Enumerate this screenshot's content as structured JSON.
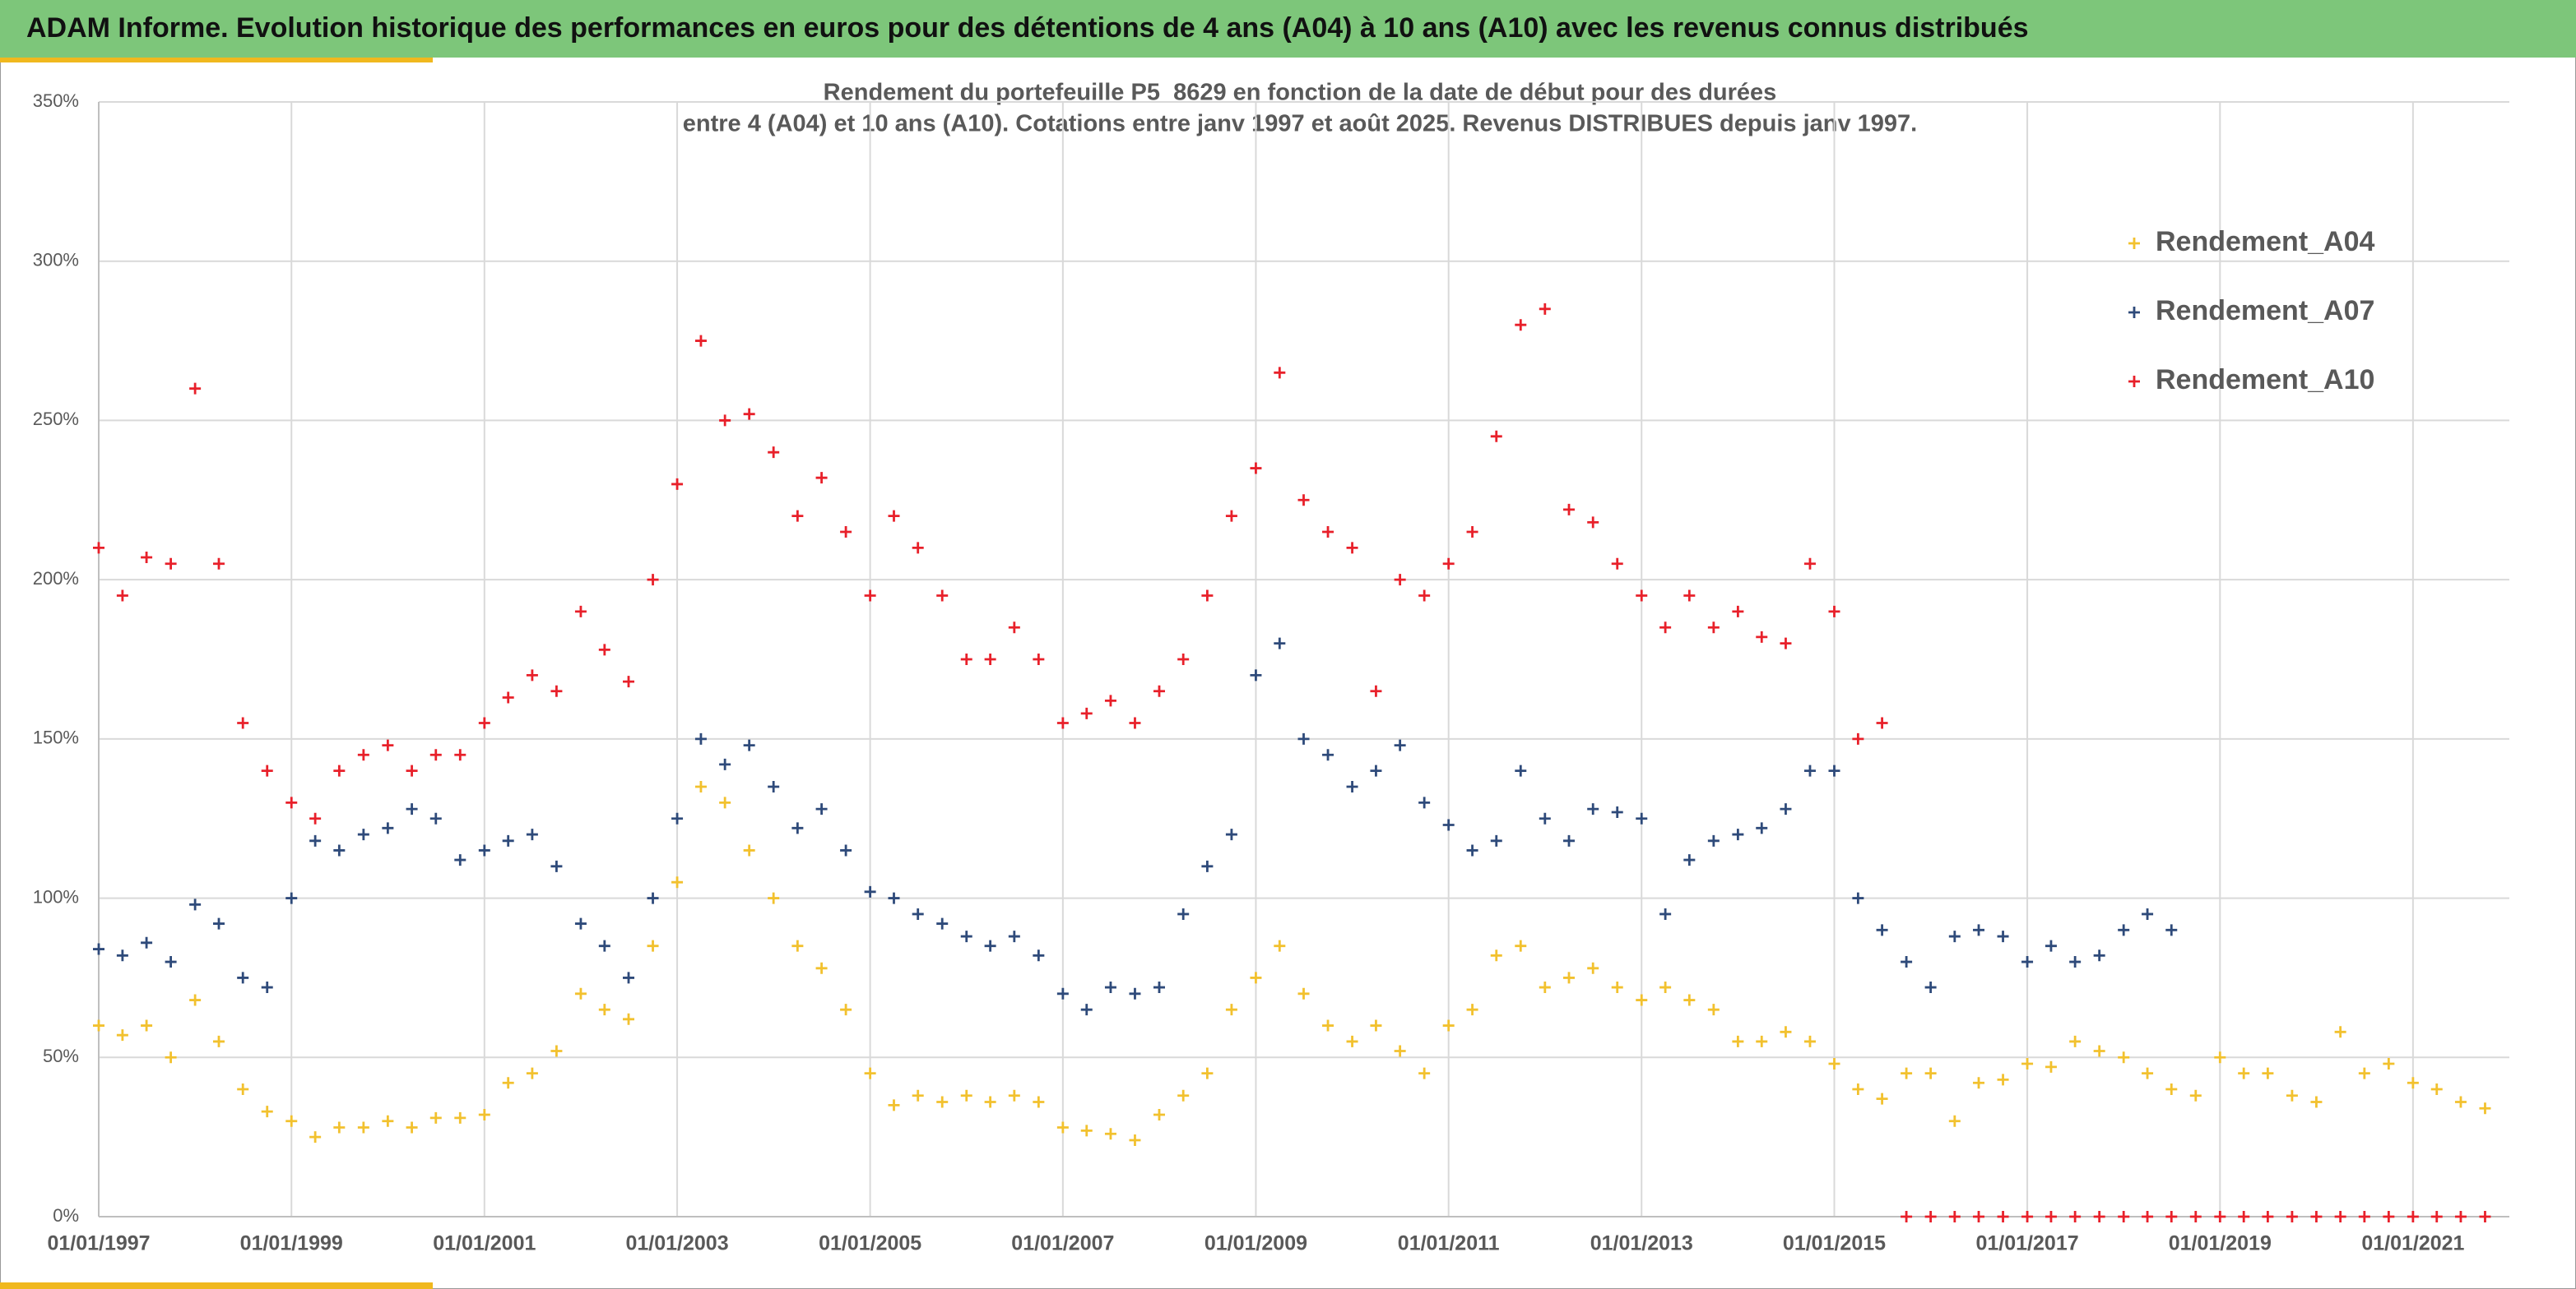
{
  "banner": "ADAM Informe. Evolution historique des performances en euros pour des détentions de 4 ans (A04) à 10 ans (A10) avec les revenus connus distribués",
  "chart_data": {
    "type": "scatter",
    "title": "Rendement du portefeuille P5_8629 en fonction de la date de début pour des durées",
    "subtitle": "entre 4 (A04) et 10 ans (A10). Cotations entre janv 1997 et août 2025. Revenus DISTRIBUES depuis janv 1997.",
    "x": [
      "01/01/1997",
      "01/04/1997",
      "01/07/1997",
      "01/10/1997",
      "01/01/1998",
      "01/04/1998",
      "01/07/1998",
      "01/10/1998",
      "01/01/1999",
      "01/04/1999",
      "01/07/1999",
      "01/10/1999",
      "01/01/2000",
      "01/04/2000",
      "01/07/2000",
      "01/10/2000",
      "01/01/2001",
      "01/04/2001",
      "01/07/2001",
      "01/10/2001",
      "01/01/2002",
      "01/04/2002",
      "01/07/2002",
      "01/10/2002",
      "01/01/2003",
      "01/04/2003",
      "01/07/2003",
      "01/10/2003",
      "01/01/2004",
      "01/04/2004",
      "01/07/2004",
      "01/10/2004",
      "01/01/2005",
      "01/04/2005",
      "01/07/2005",
      "01/10/2005",
      "01/01/2006",
      "01/04/2006",
      "01/07/2006",
      "01/10/2006",
      "01/01/2007",
      "01/04/2007",
      "01/07/2007",
      "01/10/2007",
      "01/01/2008",
      "01/04/2008",
      "01/07/2008",
      "01/10/2008",
      "01/01/2009",
      "01/04/2009",
      "01/07/2009",
      "01/10/2009",
      "01/01/2010",
      "01/04/2010",
      "01/07/2010",
      "01/10/2010",
      "01/01/2011",
      "01/04/2011",
      "01/07/2011",
      "01/10/2011",
      "01/01/2012",
      "01/04/2012",
      "01/07/2012",
      "01/10/2012",
      "01/01/2013",
      "01/04/2013",
      "01/07/2013",
      "01/10/2013",
      "01/01/2014",
      "01/04/2014",
      "01/07/2014",
      "01/10/2014",
      "01/01/2015",
      "01/04/2015",
      "01/07/2015",
      "01/10/2015",
      "01/01/2016",
      "01/04/2016",
      "01/07/2016",
      "01/10/2016",
      "01/01/2017",
      "01/04/2017",
      "01/07/2017",
      "01/10/2017",
      "01/01/2018",
      "01/04/2018",
      "01/07/2018",
      "01/10/2018",
      "01/01/2019",
      "01/04/2019",
      "01/07/2019",
      "01/10/2019",
      "01/01/2020",
      "01/04/2020",
      "01/07/2020",
      "01/10/2020",
      "01/01/2021",
      "01/04/2021",
      "01/07/2021",
      "01/10/2021"
    ],
    "series": [
      {
        "name": "Rendement_A04",
        "color": "#f2c12e",
        "values": [
          60,
          57,
          60,
          50,
          68,
          55,
          40,
          33,
          30,
          25,
          28,
          28,
          30,
          28,
          31,
          31,
          32,
          42,
          45,
          52,
          70,
          65,
          62,
          85,
          105,
          135,
          130,
          115,
          100,
          85,
          78,
          65,
          45,
          35,
          38,
          36,
          38,
          36,
          38,
          36,
          28,
          27,
          26,
          24,
          32,
          38,
          45,
          65,
          75,
          85,
          70,
          60,
          55,
          60,
          52,
          45,
          60,
          65,
          82,
          85,
          72,
          75,
          78,
          72,
          68,
          72,
          68,
          65,
          55,
          55,
          58,
          55,
          48,
          40,
          37,
          45,
          45,
          30,
          42,
          43,
          48,
          47,
          55,
          52,
          50,
          45,
          40,
          38,
          50,
          45,
          45,
          38,
          36,
          58,
          45,
          48,
          42,
          40,
          36,
          34
        ]
      },
      {
        "name": "Rendement_A07",
        "color": "#2e4a7a",
        "values": [
          84,
          82,
          86,
          80,
          98,
          92,
          75,
          72,
          100,
          118,
          115,
          120,
          122,
          128,
          125,
          112,
          115,
          118,
          120,
          110,
          92,
          85,
          75,
          100,
          125,
          150,
          142,
          148,
          135,
          122,
          128,
          115,
          102,
          100,
          95,
          92,
          88,
          85,
          88,
          82,
          70,
          65,
          72,
          70,
          72,
          95,
          110,
          120,
          170,
          180,
          150,
          145,
          135,
          140,
          148,
          130,
          123,
          115,
          118,
          140,
          125,
          118,
          128,
          127,
          125,
          95,
          112,
          118,
          120,
          122,
          128,
          140,
          140,
          100,
          90,
          80,
          72,
          88,
          90,
          88,
          80,
          85,
          80,
          82,
          90,
          95,
          90,
          null,
          null,
          null,
          null,
          null,
          null,
          null,
          null,
          null,
          null,
          null,
          null,
          null
        ]
      },
      {
        "name": "Rendement_A10",
        "color": "#e8202a",
        "values": [
          210,
          195,
          207,
          205,
          260,
          205,
          155,
          140,
          130,
          125,
          140,
          145,
          148,
          140,
          145,
          145,
          155,
          163,
          170,
          165,
          190,
          178,
          168,
          200,
          230,
          275,
          250,
          252,
          240,
          220,
          232,
          215,
          195,
          220,
          210,
          195,
          175,
          175,
          185,
          175,
          155,
          158,
          162,
          155,
          165,
          175,
          195,
          220,
          235,
          265,
          225,
          215,
          210,
          165,
          200,
          195,
          205,
          215,
          245,
          280,
          285,
          222,
          218,
          205,
          195,
          185,
          195,
          185,
          190,
          182,
          180,
          205,
          190,
          150,
          155,
          0,
          0,
          0,
          0,
          0,
          0,
          0,
          0,
          0,
          0,
          0,
          0,
          0,
          0,
          0,
          0,
          0,
          0,
          0,
          0,
          0,
          0,
          0,
          0,
          0
        ]
      }
    ],
    "xlim": [
      "01/01/1997",
      "01/01/2022"
    ],
    "xticks": [
      "01/01/1997",
      "01/01/1999",
      "01/01/2001",
      "01/01/2003",
      "01/01/2005",
      "01/01/2007",
      "01/01/2009",
      "01/01/2011",
      "01/01/2013",
      "01/01/2015",
      "01/01/2017",
      "01/01/2019",
      "01/01/2021"
    ],
    "ylim": [
      0,
      350
    ],
    "yticks": [
      {
        "value": 0,
        "label": "0%"
      },
      {
        "value": 50,
        "label": "50%"
      },
      {
        "value": 100,
        "label": "100%"
      },
      {
        "value": 150,
        "label": "150%"
      },
      {
        "value": 200,
        "label": "200%"
      },
      {
        "value": 250,
        "label": "250%"
      },
      {
        "value": 300,
        "label": "300%"
      },
      {
        "value": 350,
        "label": "350%"
      }
    ],
    "grid": true,
    "legend": "upper right"
  }
}
